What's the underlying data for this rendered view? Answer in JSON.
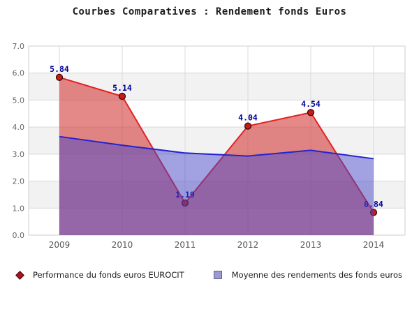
{
  "title": "Courbes Comparatives : Rendement fonds Euros",
  "chart_data": {
    "type": "area",
    "title": "Courbes Comparatives : Rendement fonds Euros",
    "categories": [
      "2009",
      "2010",
      "2011",
      "2012",
      "2013",
      "2014"
    ],
    "series": [
      {
        "name": "Performance du fonds euros EUROCIT",
        "values": [
          5.84,
          5.14,
          1.19,
          4.04,
          4.54,
          0.84
        ],
        "point_labels": [
          "5.84",
          "5.14",
          "1.19",
          "4.04",
          "4.54",
          "0.84"
        ],
        "line_color": "#e32222",
        "fill_color": "#d23232",
        "fill_opacity": 0.58,
        "marker": "round",
        "marker_color": "#c41b1b",
        "marker_border_color": "#3a0505",
        "point_label_color": "#000099"
      },
      {
        "name": "Moyenne des rendements des fonds euros",
        "values": [
          3.65,
          3.33,
          3.04,
          2.93,
          3.14,
          2.83
        ],
        "line_color": "#2424cf",
        "fill_color": "#4646c8",
        "fill_opacity": 0.5,
        "marker": "none"
      }
    ],
    "ylim": [
      0,
      7
    ],
    "ytick_values": [
      7,
      6,
      5,
      4,
      3,
      2,
      1,
      0
    ],
    "ytick_labels": [
      "7.0",
      "6.0",
      "5.0",
      "4.0",
      "3.0",
      "2.0",
      "1.0",
      "0.0"
    ],
    "grid": true,
    "legend_position": "bottom",
    "xlabel": "",
    "ylabel": "",
    "colors": {
      "band_fill": "#f2f2f2",
      "grid_line": "#d9d9d9",
      "plot_border": "#cfcfcf",
      "ytick_text": "#666666",
      "xtick_text": "#555555"
    }
  }
}
